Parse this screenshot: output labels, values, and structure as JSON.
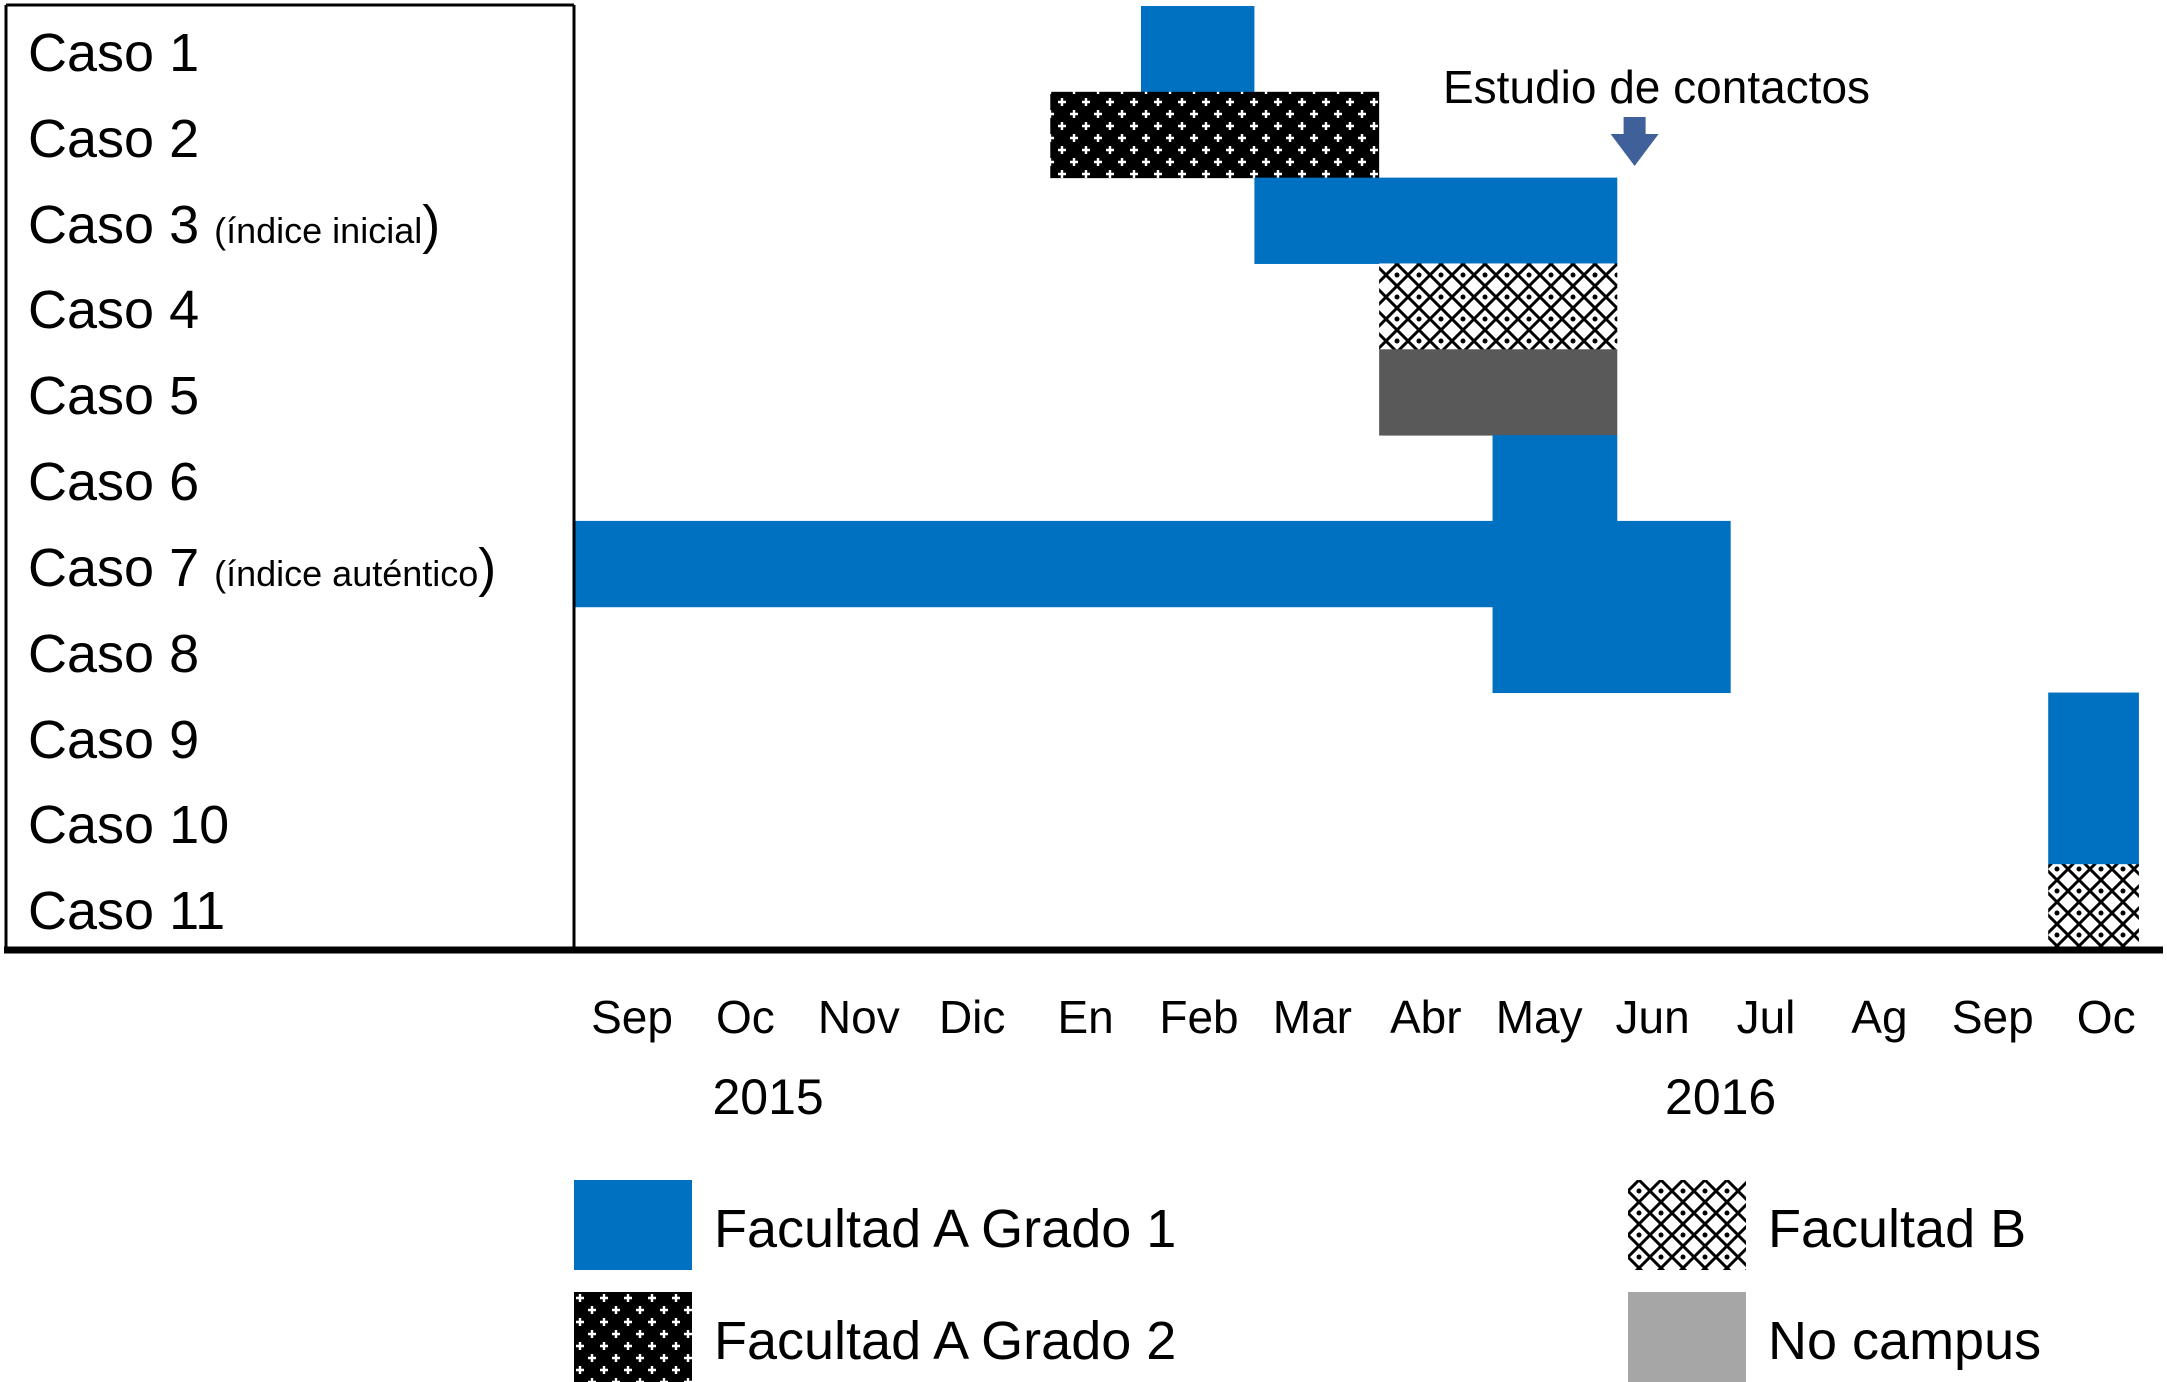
{
  "chart_data": {
    "type": "gantt",
    "cases": [
      {
        "label": "Caso 1",
        "note": ""
      },
      {
        "label": "Caso 2",
        "note": ""
      },
      {
        "label": "Caso 3",
        "note": "(índice inicial",
        "close": ")"
      },
      {
        "label": "Caso 4",
        "note": ""
      },
      {
        "label": "Caso 5",
        "note": ""
      },
      {
        "label": "Caso 6",
        "note": ""
      },
      {
        "label": "Caso 7",
        "note": "(índice auténtico",
        "close": ")"
      },
      {
        "label": "Caso 8",
        "note": ""
      },
      {
        "label": "Caso 9",
        "note": ""
      },
      {
        "label": "Caso 10",
        "note": ""
      },
      {
        "label": "Caso 11",
        "note": ""
      }
    ],
    "months": [
      "Sep",
      "Oc",
      "Nov",
      "Dic",
      "En",
      "Feb",
      "Mar",
      "Abr",
      "May",
      "Jun",
      "Jul",
      "Ag",
      "Sep",
      "Oc"
    ],
    "years": [
      {
        "label": "2015",
        "month_index": 1.2
      },
      {
        "label": "2016",
        "month_index": 9.6
      }
    ],
    "bars": [
      {
        "case": 0,
        "start": 5.0,
        "end": 6.0,
        "category": "Facultad A Grado 1"
      },
      {
        "case": 1,
        "start": 4.2,
        "end": 7.1,
        "category": "Facultad A Grado 2"
      },
      {
        "case": 2,
        "start": 6.0,
        "end": 9.2,
        "category": "Facultad A Grado 1"
      },
      {
        "case": 3,
        "start": 7.1,
        "end": 9.2,
        "category": "Facultad B"
      },
      {
        "case": 4,
        "start": 7.1,
        "end": 9.2,
        "category": "No campus"
      },
      {
        "case": 5,
        "start": 8.1,
        "end": 9.2,
        "category": "Facultad A Grado 1"
      },
      {
        "case": 6,
        "start": 0.0,
        "end": 10.2,
        "category": "Facultad A Grado 1"
      },
      {
        "case": 7,
        "start": 8.1,
        "end": 10.2,
        "category": "Facultad A Grado 1"
      },
      {
        "case": 8,
        "start": 13.0,
        "end": 13.8,
        "category": "Facultad A Grado 1"
      },
      {
        "case": 9,
        "start": 13.0,
        "end": 13.8,
        "category": "Facultad A Grado 1"
      },
      {
        "case": 10,
        "start": 13.0,
        "end": 13.8,
        "category": "Facultad B"
      }
    ],
    "annotation": {
      "text": "Estudio de contactos",
      "month_index": 9.0
    },
    "legend": [
      {
        "label": "Facultad A Grado 1",
        "color": "#0070C0",
        "pattern": "solid"
      },
      {
        "label": "Facultad A Grado 2",
        "color": "#000000",
        "pattern": "dark-dots"
      },
      {
        "label": "Facultad B",
        "color": "#ffffff",
        "pattern": "light-lattice"
      },
      {
        "label": "No campus",
        "color": "#A6A6A6",
        "pattern": "solid"
      }
    ],
    "colors": {
      "blue": "#0070C0",
      "arrow": "#3F6098",
      "dark_gray": "#595959",
      "light_gray": "#A6A6A6"
    }
  }
}
